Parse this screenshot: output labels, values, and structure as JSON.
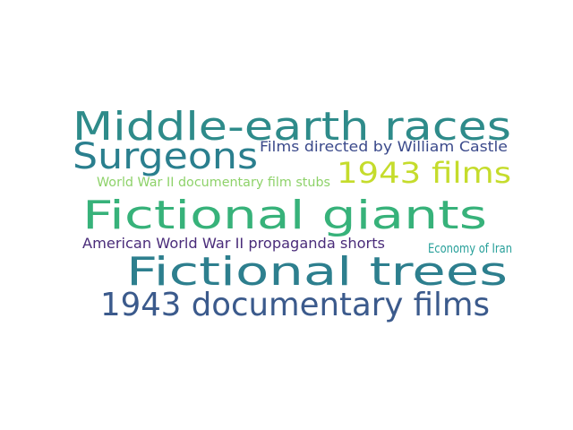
{
  "words": [
    {
      "text": "Middle-earth races",
      "color": "#2e8b8a"
    },
    {
      "text": "Surgeons",
      "color": "#2a7f8e"
    },
    {
      "text": "Films directed by William Castle",
      "color": "#3b4a8b"
    },
    {
      "text": "1943 films",
      "color": "#c5dc2c"
    },
    {
      "text": "World War II documentary film stubs",
      "color": "#8ed26a"
    },
    {
      "text": "Fictional giants",
      "color": "#37b27a"
    },
    {
      "text": "American World War II propaganda shorts",
      "color": "#4a2c7a"
    },
    {
      "text": "Economy of Iran",
      "color": "#28a09a"
    },
    {
      "text": "Fictional trees",
      "color": "#2d7f8e"
    },
    {
      "text": "1943 documentary films",
      "color": "#3b5a8c"
    }
  ]
}
